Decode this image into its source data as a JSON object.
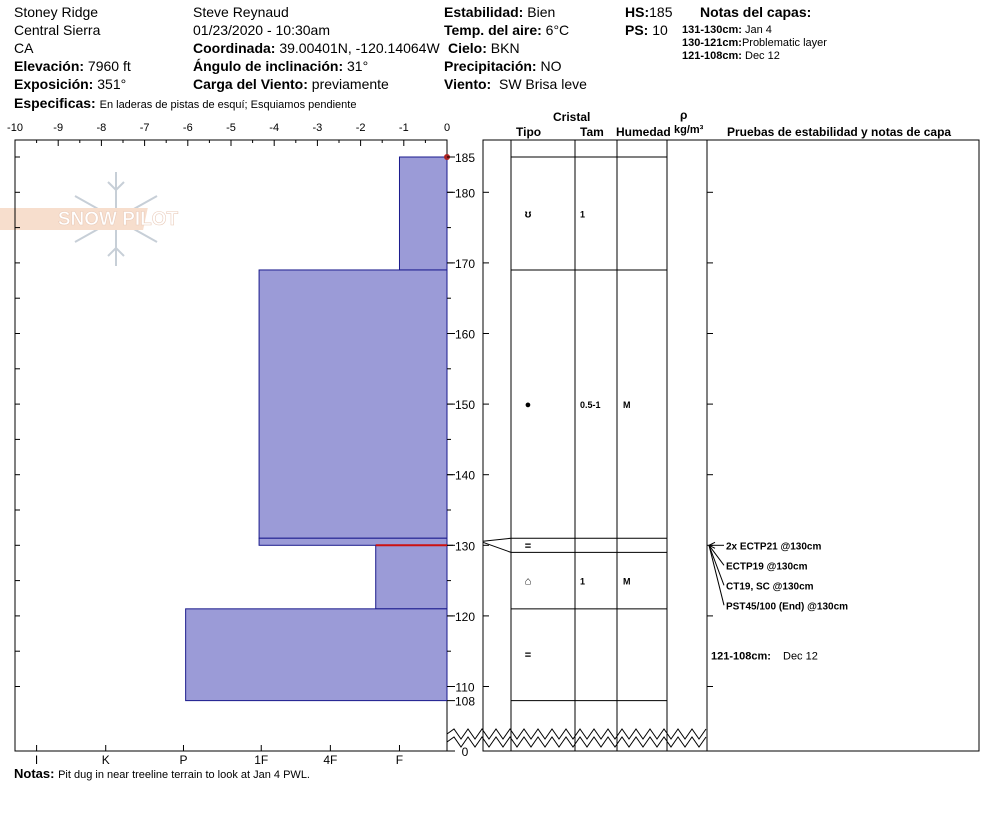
{
  "header": {
    "location": "Stoney Ridge",
    "range": "Central Sierra",
    "state": "CA",
    "elevation_label": "Elevación:",
    "elevation_value": "7960 ft",
    "aspect_label": "Exposición:",
    "aspect_value": "351°",
    "specifics_label": "Especificas:",
    "specifics_value": "En laderas de pistas de esquí; Esquiamos pendiente",
    "observer": "Steve Reynaud",
    "datetime": "01/23/2020 - 10:30am",
    "coord_label": "Coordinada:",
    "coord_value": "39.00401N, -120.14064W",
    "incline_label": "Ángulo de inclinación:",
    "incline_value": "31°",
    "wind_load_label": "Carga del Viento:",
    "wind_load_value": "previamente",
    "stability_label": "Estabilidad:",
    "stability_value": "Bien",
    "air_temp_label": "Temp. del aire:",
    "air_temp_value": "6°C",
    "sky_label": "Cielo:",
    "sky_value": "BKN",
    "precip_label": "Precipitación:",
    "precip_value": "NO",
    "wind_label": "Viento:",
    "wind_value": "SW Brisa leve",
    "hs_label": "HS:",
    "hs_value": "185",
    "ps_label": "PS:",
    "ps_value": "10",
    "layer_notes_title": "Notas del capas:",
    "layer_notes": [
      {
        "range": "131-130cm:",
        "text": "Jan 4"
      },
      {
        "range": "130-121cm:",
        "text": "Problematic layer"
      },
      {
        "range": "121-108cm:",
        "text": "Dec 12"
      }
    ]
  },
  "logo_text": "SNOW PILOT",
  "notes_label": "Notas:",
  "notes_value": "Pit dug in near treeline terrain to look at Jan 4 PWL.",
  "table_headers": {
    "cristal": "Cristal",
    "tipo": "Tipo",
    "tam": "Tam",
    "humedad": "Humedad",
    "rho": "ρ",
    "density_unit": "kg/m³",
    "tests": "Pruebas de estabilidad y notas de capa"
  },
  "colors": {
    "layer_fill": "#9b9bd7",
    "layer_stroke": "#1a1a8c",
    "weak_layer": "#cc1111",
    "hs_marker": "#aa2222"
  },
  "chart_data": {
    "type": "bar",
    "orientation": "horizontal",
    "ylabel": "",
    "ylim": [
      0,
      185
    ],
    "y_axis_break": [
      10,
      102
    ],
    "y_ticks": [
      110,
      120,
      130,
      140,
      150,
      160,
      170,
      180
    ],
    "y_tick_extra": [
      0,
      108,
      185
    ],
    "xlim": [
      -10,
      0
    ],
    "x_ticks_top": [
      -10,
      -9,
      -8,
      -7,
      -6,
      -5,
      -4,
      -3,
      -2,
      -1,
      0
    ],
    "hardness_scale": [
      "I",
      "K",
      "P",
      "1F",
      "4F",
      "F"
    ],
    "hardness_tick_values": [
      -9.5,
      -7.9,
      -6.1,
      -4.3,
      -2.7,
      -1.1
    ],
    "layers": [
      {
        "top": 185,
        "bottom": 169,
        "hardness_value": -1.1
      },
      {
        "top": 169,
        "bottom": 131,
        "hardness_value": -4.35
      },
      {
        "top": 131,
        "bottom": 130,
        "hardness_value": -4.35
      },
      {
        "top": 130,
        "bottom": 121,
        "hardness_value": -1.65
      },
      {
        "top": 121,
        "bottom": 108,
        "hardness_value": -6.05
      }
    ],
    "weak_layer_depth": 130,
    "grain_rows": [
      {
        "top": 185,
        "bottom": 169,
        "symbol": "ʊ",
        "size": "1",
        "wetness": ""
      },
      {
        "top": 169,
        "bottom": 131,
        "symbol": "●",
        "size": "0.5-1",
        "wetness": "M"
      },
      {
        "top": 131,
        "bottom": 129,
        "symbol": "=",
        "size": "",
        "wetness": ""
      },
      {
        "top": 129,
        "bottom": 121,
        "symbol": "⌂",
        "size": "1",
        "wetness": "M"
      },
      {
        "top": 121,
        "bottom": 108,
        "symbol": "=",
        "size": "",
        "wetness": ""
      }
    ],
    "stability_tests": [
      "2x ECTP21 @130cm",
      "ECTP19 @130cm",
      "CT19, SC @130cm",
      "PST45/100 (End) @130cm"
    ],
    "layer_note": {
      "range": "121-108cm:",
      "text": "Dec 12"
    }
  }
}
